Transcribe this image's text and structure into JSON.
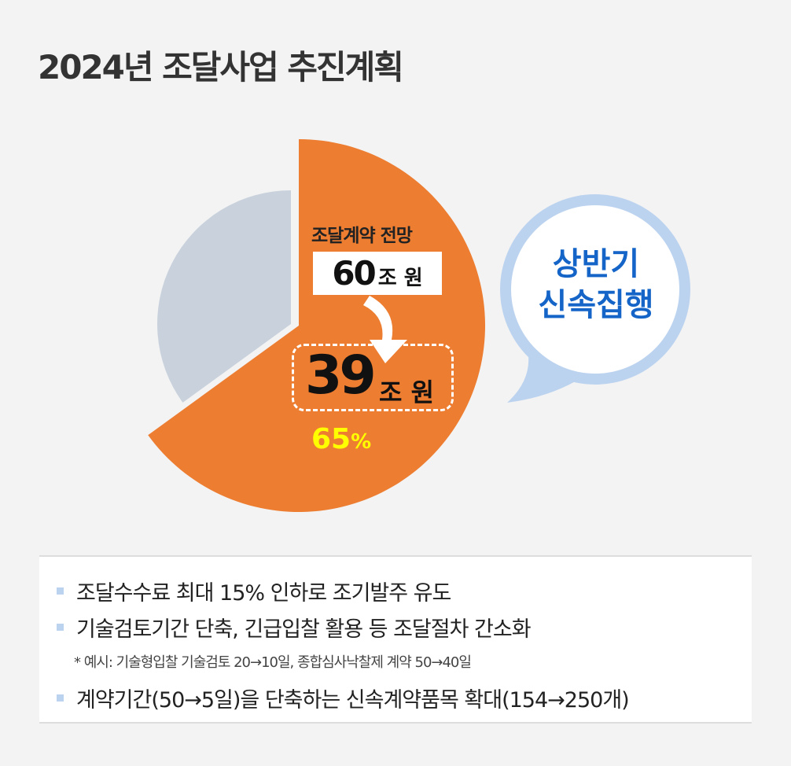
{
  "title": "2024년 조달사업 추진계획",
  "chart_data": {
    "type": "pie",
    "total_label": "조달계약 전망",
    "total_value": "60",
    "total_unit": "조 원",
    "highlight_value": "39",
    "highlight_unit": "조 원",
    "highlight_percent": "65",
    "percent_sign": "%",
    "slices": [
      {
        "value": 65,
        "color": "#ed7d31"
      },
      {
        "value": 35,
        "color": "#c9d2dc"
      }
    ],
    "percent_color": "#ffff00"
  },
  "bubble": {
    "line1": "상반기",
    "line2": "신속집행",
    "color": "#1565c8",
    "border_color": "#bcd3f0"
  },
  "notes": [
    "조달수수료 최대 15% 인하로 조기발주 유도",
    "기술검토기간 단축, 긴급입찰 활용 등 조달절차 간소화",
    "계약기간(50→5일)을 단축하는 신속계약품목 확대(154→250개)"
  ],
  "note_example": "* 예시: 기술형입찰 기술검토 20→10일, 종합심사낙찰제 계약  50→40일"
}
